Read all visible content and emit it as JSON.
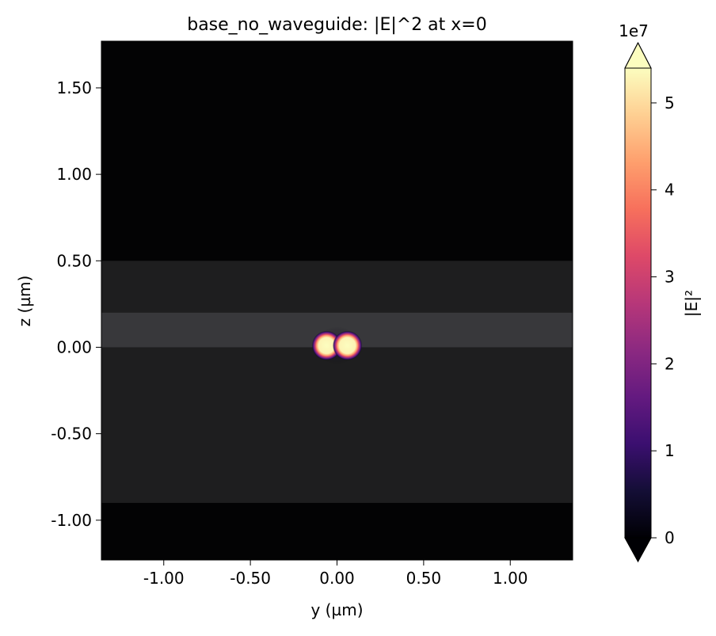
{
  "chart_data": {
    "type": "heatmap",
    "title": "base_no_waveguide: |E|^2 at x=0",
    "xlabel": "y (µm)",
    "ylabel": "z (µm)",
    "xlim": [
      -1.36,
      1.36
    ],
    "ylim": [
      -1.23,
      1.77
    ],
    "xticks": [
      {
        "value": -1.0,
        "label": "-1.00"
      },
      {
        "value": -0.5,
        "label": "-0.50"
      },
      {
        "value": 0.0,
        "label": "0.00"
      },
      {
        "value": 0.5,
        "label": "0.50"
      },
      {
        "value": 1.0,
        "label": "1.00"
      }
    ],
    "yticks": [
      {
        "value": -1.0,
        "label": "-1.00"
      },
      {
        "value": -0.5,
        "label": "-0.50"
      },
      {
        "value": 0.0,
        "label": "0.00"
      },
      {
        "value": 0.5,
        "label": "0.50"
      },
      {
        "value": 1.0,
        "label": "1.00"
      },
      {
        "value": 1.5,
        "label": "1.50"
      }
    ],
    "colormap": "magma",
    "colorbar": {
      "label": "|E|²",
      "scale_label": "1e7",
      "vmin": 0,
      "vmax": 5.4,
      "extend": "both",
      "ticks": [
        {
          "value": 0,
          "label": "0"
        },
        {
          "value": 1,
          "label": "1"
        },
        {
          "value": 2,
          "label": "2"
        },
        {
          "value": 3,
          "label": "3"
        },
        {
          "value": 4,
          "label": "4"
        },
        {
          "value": 5,
          "label": "5"
        }
      ]
    },
    "structures": [
      {
        "name": "cladding",
        "z_range": [
          -0.9,
          0.5
        ],
        "color": "#1e1e1f"
      },
      {
        "name": "core",
        "z_range": [
          0.0,
          0.2
        ],
        "color": "#38383b"
      }
    ],
    "hotspots": [
      {
        "y": -0.06,
        "z": 0.01,
        "peak": 5.4
      },
      {
        "y": 0.06,
        "z": 0.01,
        "peak": 5.4
      }
    ],
    "background_color": "#030304"
  }
}
